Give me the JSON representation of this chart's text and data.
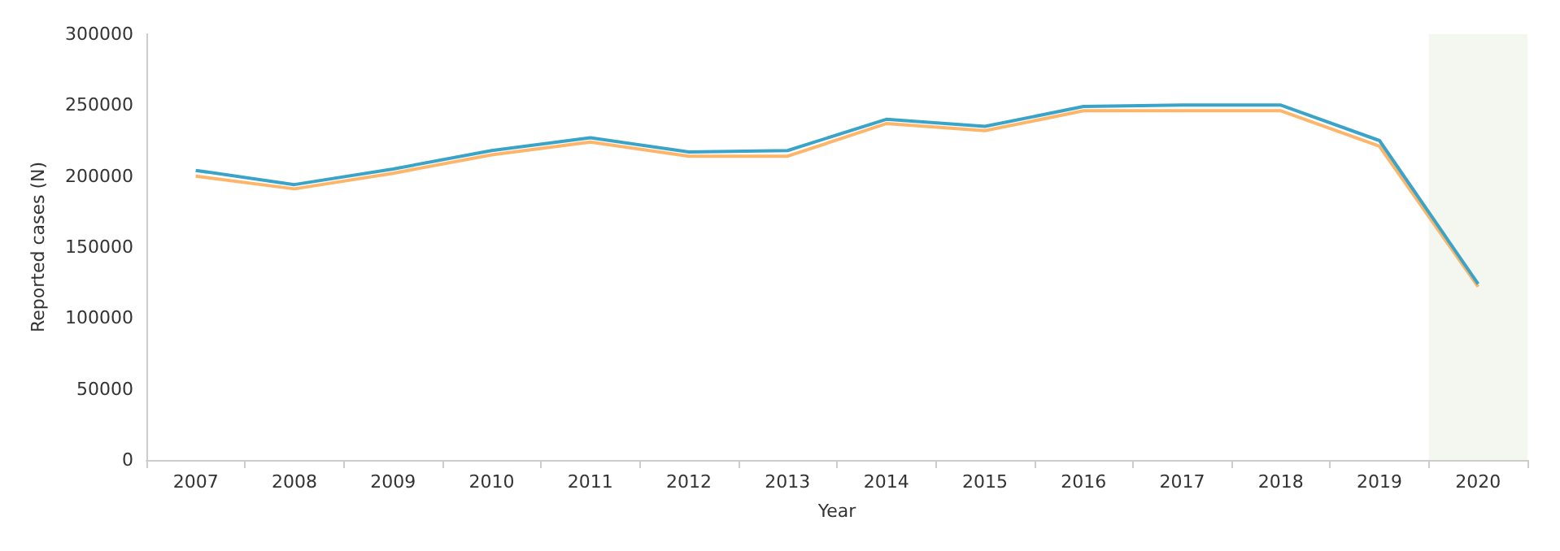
{
  "chart_data": {
    "type": "line",
    "xlabel": "Year",
    "ylabel": "Reported cases (N)",
    "categories": [
      "2007",
      "2008",
      "2009",
      "2010",
      "2011",
      "2012",
      "2013",
      "2014",
      "2015",
      "2016",
      "2017",
      "2018",
      "2019",
      "2020"
    ],
    "series": [
      {
        "color": "#fdb56a",
        "values": [
          200000,
          191000,
          202000,
          215000,
          224000,
          214000,
          214000,
          237000,
          232000,
          246000,
          246000,
          246000,
          221000,
          122000
        ]
      },
      {
        "color": "#3aa3c8",
        "values": [
          204000,
          194000,
          205000,
          218000,
          227000,
          217000,
          218000,
          240000,
          235000,
          249000,
          250000,
          250000,
          225000,
          124000
        ]
      }
    ],
    "ylim": [
      0,
      300000
    ],
    "yticks": [
      0,
      50000,
      100000,
      150000,
      200000,
      250000,
      300000
    ],
    "bands": [
      {
        "axis": "x",
        "from": "2020",
        "to": "2020",
        "color": "#f4f7f0"
      }
    ],
    "grid": false,
    "marker": "none",
    "line_style": "solid"
  }
}
